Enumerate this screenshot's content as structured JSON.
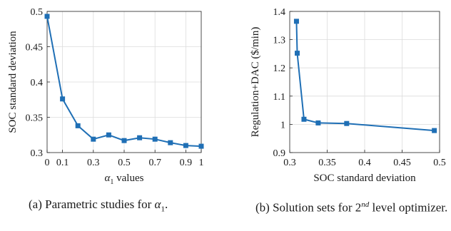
{
  "chart_data": [
    {
      "type": "line",
      "xlabel_symbol": "α",
      "xlabel_subscript": "1",
      "xlabel_rest": " values",
      "ylabel": "SOC standard deviation",
      "xlim": [
        0,
        1
      ],
      "ylim": [
        0.3,
        0.5
      ],
      "xticks": [
        0,
        0.1,
        0.3,
        0.5,
        0.7,
        0.9,
        1
      ],
      "xtick_labels": [
        "0",
        "0.1",
        "0.3",
        "0.5",
        "0.7",
        "0.9",
        "1"
      ],
      "yticks": [
        0.3,
        0.35,
        0.4,
        0.45,
        0.5
      ],
      "ytick_labels": [
        "0.3",
        "0.35",
        "0.4",
        "0.45",
        "0.5"
      ],
      "grid": true,
      "series": [
        {
          "x": [
            0,
            0.1,
            0.2,
            0.3,
            0.4,
            0.5,
            0.6,
            0.7,
            0.8,
            0.9,
            1.0
          ],
          "y": [
            0.493,
            0.376,
            0.338,
            0.319,
            0.325,
            0.317,
            0.321,
            0.319,
            0.314,
            0.31,
            0.309
          ]
        }
      ],
      "color": "#1f6fb5"
    },
    {
      "type": "line",
      "xlabel": "SOC standard deviation",
      "ylabel": "Regulation+DAC ($/min)",
      "xlim": [
        0.3,
        0.5
      ],
      "ylim": [
        0.9,
        1.4
      ],
      "xticks": [
        0.3,
        0.35,
        0.4,
        0.45,
        0.5
      ],
      "xtick_labels": [
        "0.3",
        "0.35",
        "0.4",
        "0.45",
        "0.5"
      ],
      "yticks": [
        0.9,
        1.0,
        1.1,
        1.2,
        1.3,
        1.4
      ],
      "ytick_labels": [
        "0.9",
        "1",
        "1.1",
        "1.2",
        "1.3",
        "1.4"
      ],
      "grid": true,
      "series": [
        {
          "x": [
            0.309,
            0.31,
            0.319,
            0.338,
            0.376,
            0.493
          ],
          "y": [
            1.365,
            1.252,
            1.018,
            1.005,
            1.003,
            0.978
          ]
        }
      ],
      "color": "#1f6fb5"
    }
  ],
  "captions": {
    "a_prefix": "(a) Parametric studies for ",
    "a_symbol": "α",
    "a_sub": "1",
    "a_suffix": ".",
    "b_prefix": "(b) Solution sets for 2",
    "b_sup": "nd",
    "b_suffix": " level optimizer."
  }
}
